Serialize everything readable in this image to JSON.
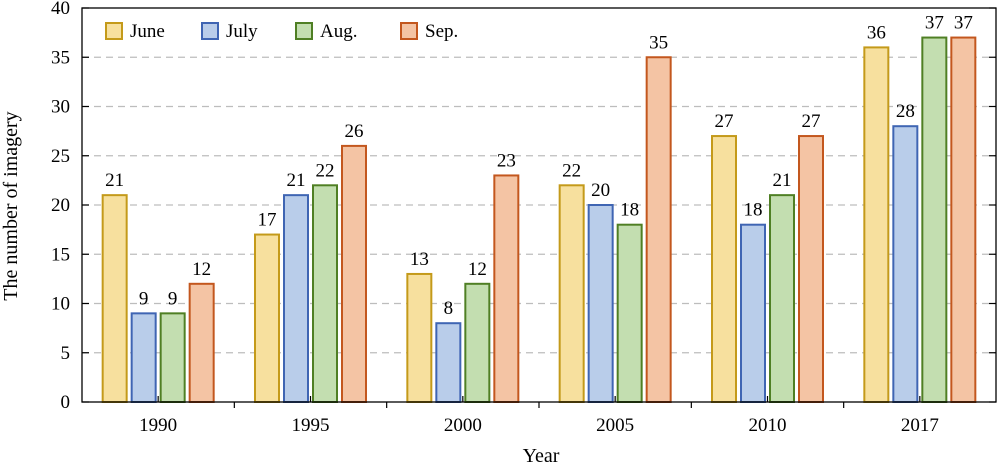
{
  "chart_data": {
    "type": "bar",
    "title": "",
    "xlabel": "Year",
    "ylabel": "The number of imagery",
    "categories": [
      "1990",
      "1995",
      "2000",
      "2005",
      "2010",
      "2017"
    ],
    "series": [
      {
        "name": "June",
        "values": [
          21,
          17,
          13,
          22,
          27,
          36
        ],
        "fill": "#f7e09e",
        "stroke": "#c49a1a"
      },
      {
        "name": "July",
        "values": [
          9,
          21,
          8,
          20,
          18,
          28
        ],
        "fill": "#b9cdea",
        "stroke": "#3f65b3"
      },
      {
        "name": "Aug.",
        "values": [
          9,
          22,
          12,
          18,
          21,
          37
        ],
        "fill": "#c3deb0",
        "stroke": "#4f7f24"
      },
      {
        "name": "Sep.",
        "values": [
          12,
          26,
          23,
          35,
          27,
          37
        ],
        "fill": "#f4c4a4",
        "stroke": "#c3571e"
      }
    ],
    "ylim": [
      0,
      40
    ],
    "yticks": [
      0,
      5,
      10,
      15,
      20,
      25,
      30,
      35,
      40
    ],
    "grid": true,
    "legend_position": "top-left",
    "data_labels": true
  }
}
